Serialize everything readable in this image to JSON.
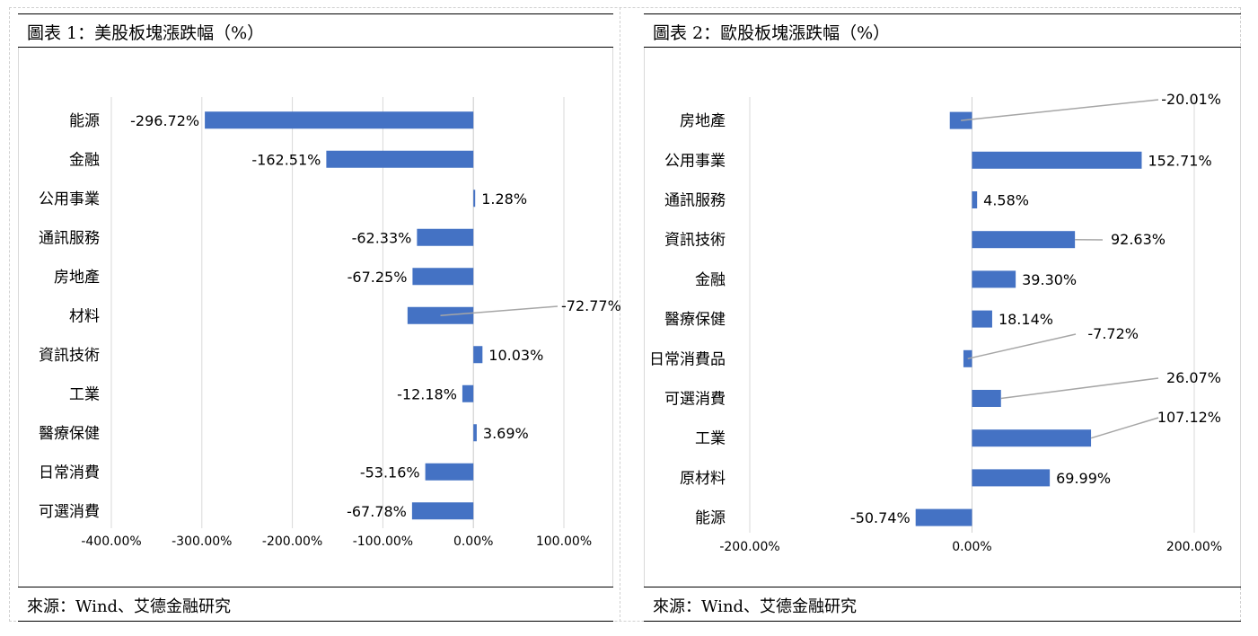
{
  "charts": [
    {
      "title": "圖表 1：美股板塊漲跌幅（%）",
      "source": "來源：Wind、艾德金融研究"
    },
    {
      "title": "圖表 2：歐股板塊漲跌幅（%）",
      "source": "來源：Wind、艾德金融研究"
    }
  ],
  "colors": {
    "bar": "#4472C4",
    "grid": "#d9d9d9",
    "leader": "#a6a6a6"
  },
  "chart_data": [
    {
      "type": "bar",
      "orientation": "horizontal",
      "title": "圖表 1：美股板塊漲跌幅（%）",
      "categories": [
        "能源",
        "金融",
        "公用事業",
        "通訊服務",
        "房地產",
        "材料",
        "資訊技術",
        "工業",
        "醫療保健",
        "日常消費",
        "可選消費"
      ],
      "values": [
        -296.72,
        -162.51,
        1.28,
        -62.33,
        -67.25,
        -72.77,
        10.03,
        -12.18,
        3.69,
        -53.16,
        -67.78
      ],
      "data_labels": [
        "-296.72%",
        "-162.51%",
        "1.28%",
        "-62.33%",
        "-67.25%",
        "-72.77%",
        "10.03%",
        "-12.18%",
        "3.69%",
        "-53.16%",
        "-67.78%"
      ],
      "xlim": [
        -400,
        100
      ],
      "x_ticks": [
        -400,
        -300,
        -200,
        -100,
        0,
        100
      ],
      "x_tick_labels": [
        "-400.00%",
        "-300.00%",
        "-200.00%",
        "-100.00%",
        "0.00%",
        "100.00%"
      ],
      "grid": true,
      "legend": "none"
    },
    {
      "type": "bar",
      "orientation": "horizontal",
      "title": "圖表 2：歐股板塊漲跌幅（%）",
      "categories": [
        "房地產",
        "公用事業",
        "通訊服務",
        "資訊技術",
        "金融",
        "醫療保健",
        "日常消費品",
        "可選消費",
        "工業",
        "原材料",
        "能源"
      ],
      "values": [
        -20.01,
        152.71,
        4.58,
        92.63,
        39.3,
        18.14,
        -7.72,
        26.07,
        107.12,
        69.99,
        -50.74
      ],
      "data_labels": [
        "-20.01%",
        "152.71%",
        "4.58%",
        "92.63%",
        "39.30%",
        "18.14%",
        "-7.72%",
        "26.07%",
        "107.12%",
        "69.99%",
        "-50.74%"
      ],
      "xlim": [
        -200,
        200
      ],
      "x_ticks": [
        -200,
        0,
        200
      ],
      "x_tick_labels": [
        "-200.00%",
        "0.00%",
        "200.00%"
      ],
      "grid": true,
      "legend": "none"
    }
  ]
}
